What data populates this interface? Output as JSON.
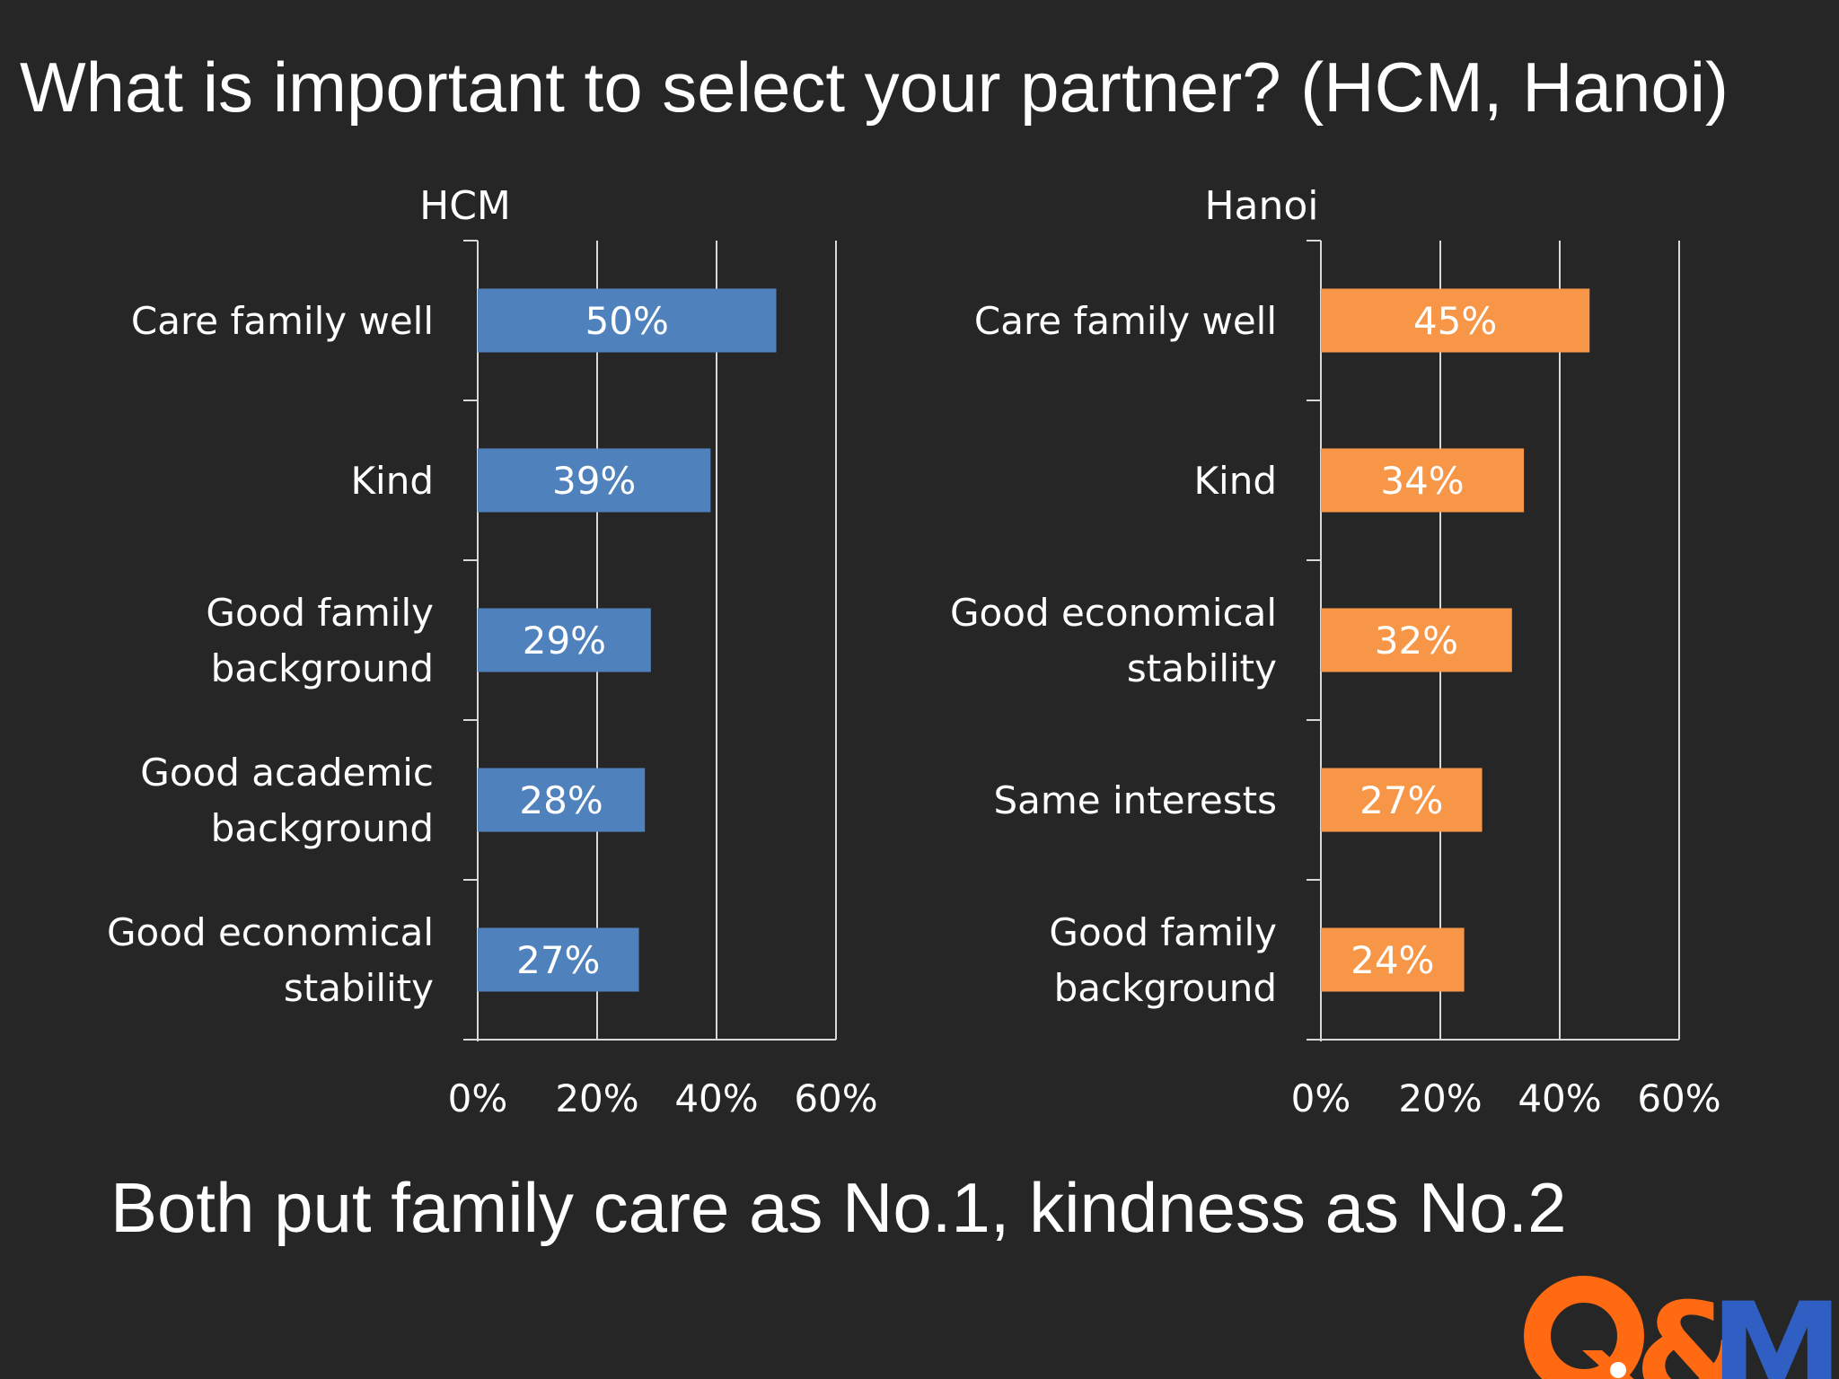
{
  "slide": {
    "title": "What is important to select your partner? (HCM, Hanoi)",
    "conclusion": "Both put family care as No.1, kindness as No.2"
  },
  "logo": {
    "text": "Q&Me",
    "colors": {
      "q": "#ff6a13",
      "me": "#2f5fc2"
    }
  },
  "chart_data": [
    {
      "type": "bar",
      "orientation": "horizontal",
      "title": "HCM",
      "categories": [
        "Care family well",
        "Kind",
        "Good family background",
        "Good academic background",
        "Good economical stability"
      ],
      "category_lines": [
        [
          "Care family well"
        ],
        [
          "Kind"
        ],
        [
          "Good family",
          "background"
        ],
        [
          "Good academic",
          "background"
        ],
        [
          "Good economical",
          "stability"
        ]
      ],
      "values": [
        50,
        39,
        29,
        28,
        27
      ],
      "data_labels": [
        "50%",
        "39%",
        "29%",
        "28%",
        "27%"
      ],
      "xlim": [
        0,
        60
      ],
      "xticks": [
        0,
        20,
        40,
        60
      ],
      "xtick_labels": [
        "0%",
        "20%",
        "40%",
        "60%"
      ],
      "grid": true,
      "legend": "none",
      "color": "#4f81bd"
    },
    {
      "type": "bar",
      "orientation": "horizontal",
      "title": "Hanoi",
      "categories": [
        "Care family well",
        "Kind",
        "Good economical stability",
        "Same interests",
        "Good family background"
      ],
      "category_lines": [
        [
          "Care family well"
        ],
        [
          "Kind"
        ],
        [
          "Good economical",
          "stability"
        ],
        [
          "Same interests"
        ],
        [
          "Good family",
          "background"
        ]
      ],
      "values": [
        45,
        34,
        32,
        27,
        24
      ],
      "data_labels": [
        "45%",
        "34%",
        "32%",
        "27%",
        "24%"
      ],
      "xlim": [
        0,
        60
      ],
      "xticks": [
        0,
        20,
        40,
        60
      ],
      "xtick_labels": [
        "0%",
        "20%",
        "40%",
        "60%"
      ],
      "grid": true,
      "legend": "none",
      "color": "#f79646"
    }
  ]
}
